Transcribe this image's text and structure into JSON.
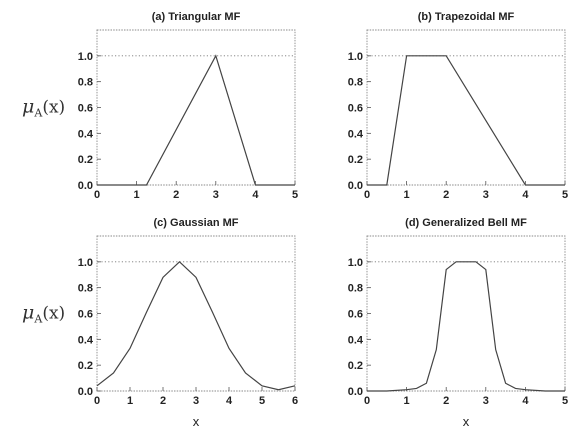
{
  "chart_data": [
    {
      "type": "line",
      "title": "(a) Triangular MF",
      "ylabel": "μ_A(x)",
      "xlabel": "",
      "xlim": [
        0,
        5
      ],
      "ylim": [
        0,
        1.2
      ],
      "xticks": [
        "0",
        "1",
        "2",
        "3",
        "4",
        "5"
      ],
      "yticks": [
        "0.0",
        "0.2",
        "0.4",
        "0.6",
        "0.8",
        "1.0"
      ],
      "grid": false,
      "series": [
        {
          "x": [
            0,
            1.25,
            3,
            4,
            5
          ],
          "y": [
            0,
            0,
            1,
            0,
            0
          ]
        }
      ]
    },
    {
      "type": "line",
      "title": "(b) Trapezoidal MF",
      "ylabel": "",
      "xlabel": "",
      "xlim": [
        0,
        5
      ],
      "ylim": [
        0,
        1.2
      ],
      "xticks": [
        "0",
        "1",
        "2",
        "3",
        "4",
        "5"
      ],
      "yticks": [
        "0.0",
        "0.2",
        "0.4",
        "0.6",
        "0.8",
        "1.0"
      ],
      "grid": false,
      "series": [
        {
          "x": [
            0,
            0.5,
            1,
            2,
            4,
            5
          ],
          "y": [
            0,
            0,
            1,
            1,
            0,
            0
          ]
        }
      ]
    },
    {
      "type": "line",
      "title": "(c) Gaussian MF",
      "ylabel": "μ_A(x)",
      "xlabel": "x",
      "xlim": [
        0,
        6
      ],
      "ylim": [
        0,
        1.2
      ],
      "xticks": [
        "0",
        "1",
        "2",
        "3",
        "4",
        "5",
        "6"
      ],
      "yticks": [
        "0.0",
        "0.2",
        "0.4",
        "0.6",
        "0.8",
        "1.0"
      ],
      "grid": false,
      "series": [
        {
          "x": [
            0,
            0.5,
            1,
            1.5,
            2,
            2.5,
            3,
            3.5,
            4,
            4.5,
            5,
            5.5,
            6
          ],
          "y": [
            0.04,
            0.14,
            0.33,
            0.61,
            0.88,
            1.0,
            0.88,
            0.61,
            0.33,
            0.14,
            0.04,
            0.01,
            0.04
          ]
        }
      ]
    },
    {
      "type": "line",
      "title": "(d) Generalized Bell MF",
      "ylabel": "",
      "xlabel": "x",
      "xlim": [
        0,
        5
      ],
      "ylim": [
        0,
        1.2
      ],
      "xticks": [
        "0",
        "1",
        "2",
        "3",
        "4",
        "5"
      ],
      "yticks": [
        "0.0",
        "0.2",
        "0.4",
        "0.6",
        "0.8",
        "1.0"
      ],
      "grid": false,
      "series": [
        {
          "x": [
            0,
            0.5,
            1,
            1.25,
            1.5,
            1.75,
            2,
            2.25,
            2.5,
            2.75,
            3,
            3.25,
            3.5,
            3.75,
            4,
            4.5,
            5
          ],
          "y": [
            0.0,
            0.0,
            0.01,
            0.02,
            0.06,
            0.32,
            0.94,
            1.0,
            1.0,
            1.0,
            0.94,
            0.32,
            0.06,
            0.02,
            0.01,
            0.0,
            0.0
          ]
        }
      ]
    }
  ]
}
